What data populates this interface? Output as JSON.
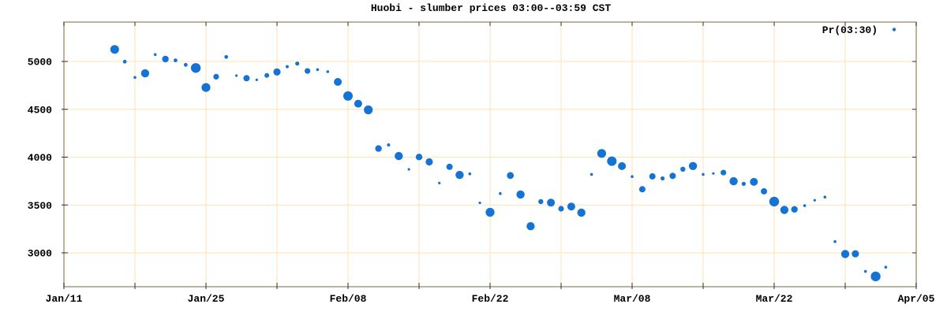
{
  "chart_data": {
    "type": "scatter",
    "title": "Huobi - slumber prices 03:00--03:59 CST",
    "legend": {
      "label": "Pr(03:30)",
      "position": "top-right"
    },
    "x_axis": {
      "ticks": [
        "Jan/11",
        "Jan/18",
        "Jan/25",
        "Feb/01",
        "Feb/08",
        "Feb/15",
        "Feb/22",
        "Mar/01",
        "Mar/08",
        "Mar/15",
        "Mar/22",
        "Mar/29",
        "Apr/05"
      ],
      "labeled_ticks": [
        "Jan/11",
        "Jan/25",
        "Feb/08",
        "Feb/22",
        "Mar/08",
        "Mar/22",
        "Apr/05"
      ],
      "range": [
        "Jan/11",
        "Apr/05"
      ]
    },
    "y_axis": {
      "ticks": [
        3000,
        3500,
        4000,
        4500,
        5000
      ],
      "range": [
        2646,
        5412
      ]
    },
    "grid": true,
    "colors": {
      "point": "#1574d3",
      "grid": "#ffe2b5",
      "border": "#a69b7d",
      "tick": "#2b2b2b",
      "text": "#000000"
    },
    "points": [
      {
        "date": "Jan/16",
        "price": 5126,
        "size": 5.5
      },
      {
        "date": "Jan/17",
        "price": 4998,
        "size": 2.4
      },
      {
        "date": "Jan/18",
        "price": 4833,
        "size": 1.8
      },
      {
        "date": "Jan/19",
        "price": 4876,
        "size": 5.2
      },
      {
        "date": "Jan/20",
        "price": 5072,
        "size": 1.8
      },
      {
        "date": "Jan/21",
        "price": 5025,
        "size": 4.2
      },
      {
        "date": "Jan/22",
        "price": 5011,
        "size": 2.4
      },
      {
        "date": "Jan/23",
        "price": 4965,
        "size": 2.4
      },
      {
        "date": "Jan/24",
        "price": 4932,
        "size": 6.2
      },
      {
        "date": "Jan/25",
        "price": 4728,
        "size": 5.6
      },
      {
        "date": "Jan/26",
        "price": 4841,
        "size": 3.6
      },
      {
        "date": "Jan/27",
        "price": 5047,
        "size": 2.4
      },
      {
        "date": "Jan/28",
        "price": 4852,
        "size": 1.6
      },
      {
        "date": "Jan/29",
        "price": 4825,
        "size": 4.0
      },
      {
        "date": "Jan/30",
        "price": 4808,
        "size": 1.6
      },
      {
        "date": "Jan/31",
        "price": 4854,
        "size": 3.0
      },
      {
        "date": "Feb/01",
        "price": 4890,
        "size": 4.6
      },
      {
        "date": "Feb/02",
        "price": 4946,
        "size": 2.0
      },
      {
        "date": "Feb/03",
        "price": 4978,
        "size": 2.6
      },
      {
        "date": "Feb/04",
        "price": 4901,
        "size": 3.6
      },
      {
        "date": "Feb/05",
        "price": 4915,
        "size": 1.8
      },
      {
        "date": "Feb/06",
        "price": 4893,
        "size": 1.8
      },
      {
        "date": "Feb/07",
        "price": 4786,
        "size": 5.0
      },
      {
        "date": "Feb/08",
        "price": 4639,
        "size": 6.0
      },
      {
        "date": "Feb/09",
        "price": 4559,
        "size": 5.0
      },
      {
        "date": "Feb/10",
        "price": 4494,
        "size": 5.6
      },
      {
        "date": "Feb/11",
        "price": 4090,
        "size": 4.2
      },
      {
        "date": "Feb/12",
        "price": 4128,
        "size": 2.0
      },
      {
        "date": "Feb/13",
        "price": 4012,
        "size": 5.2
      },
      {
        "date": "Feb/14",
        "price": 3873,
        "size": 1.6
      },
      {
        "date": "Feb/15",
        "price": 4002,
        "size": 4.2
      },
      {
        "date": "Feb/16",
        "price": 3951,
        "size": 4.6
      },
      {
        "date": "Feb/17",
        "price": 3729,
        "size": 1.6
      },
      {
        "date": "Feb/18",
        "price": 3899,
        "size": 4.0
      },
      {
        "date": "Feb/19",
        "price": 3814,
        "size": 5.2
      },
      {
        "date": "Feb/20",
        "price": 3826,
        "size": 1.8
      },
      {
        "date": "Feb/21",
        "price": 3523,
        "size": 1.6
      },
      {
        "date": "Feb/22",
        "price": 3424,
        "size": 5.6
      },
      {
        "date": "Feb/23",
        "price": 3620,
        "size": 1.8
      },
      {
        "date": "Feb/24",
        "price": 3808,
        "size": 4.4
      },
      {
        "date": "Feb/25",
        "price": 3610,
        "size": 5.2
      },
      {
        "date": "Feb/26",
        "price": 3278,
        "size": 5.2
      },
      {
        "date": "Feb/27",
        "price": 3535,
        "size": 3.2
      },
      {
        "date": "Feb/28",
        "price": 3524,
        "size": 5.0
      },
      {
        "date": "Mar/01",
        "price": 3461,
        "size": 3.6
      },
      {
        "date": "Mar/02",
        "price": 3484,
        "size": 5.0
      },
      {
        "date": "Mar/03",
        "price": 3420,
        "size": 5.2
      },
      {
        "date": "Mar/04",
        "price": 3820,
        "size": 1.8
      },
      {
        "date": "Mar/05",
        "price": 4039,
        "size": 5.6
      },
      {
        "date": "Mar/06",
        "price": 3958,
        "size": 6.0
      },
      {
        "date": "Mar/07",
        "price": 3906,
        "size": 5.0
      },
      {
        "date": "Mar/08",
        "price": 3797,
        "size": 1.8
      },
      {
        "date": "Mar/09",
        "price": 3664,
        "size": 4.0
      },
      {
        "date": "Mar/10",
        "price": 3799,
        "size": 4.0
      },
      {
        "date": "Mar/11",
        "price": 3778,
        "size": 2.6
      },
      {
        "date": "Mar/12",
        "price": 3804,
        "size": 4.0
      },
      {
        "date": "Mar/13",
        "price": 3874,
        "size": 3.2
      },
      {
        "date": "Mar/14",
        "price": 3907,
        "size": 5.2
      },
      {
        "date": "Mar/15",
        "price": 3820,
        "size": 1.8
      },
      {
        "date": "Mar/16",
        "price": 3830,
        "size": 1.6
      },
      {
        "date": "Mar/17",
        "price": 3839,
        "size": 3.6
      },
      {
        "date": "Mar/18",
        "price": 3748,
        "size": 5.2
      },
      {
        "date": "Mar/19",
        "price": 3721,
        "size": 2.6
      },
      {
        "date": "Mar/20",
        "price": 3742,
        "size": 5.0
      },
      {
        "date": "Mar/21",
        "price": 3643,
        "size": 4.0
      },
      {
        "date": "Mar/22",
        "price": 3536,
        "size": 6.2
      },
      {
        "date": "Mar/23",
        "price": 3449,
        "size": 5.2
      },
      {
        "date": "Mar/24",
        "price": 3454,
        "size": 4.2
      },
      {
        "date": "Mar/25",
        "price": 3493,
        "size": 1.8
      },
      {
        "date": "Mar/26",
        "price": 3550,
        "size": 1.6
      },
      {
        "date": "Mar/27",
        "price": 3583,
        "size": 1.8
      },
      {
        "date": "Mar/28",
        "price": 3118,
        "size": 1.8
      },
      {
        "date": "Mar/29",
        "price": 2988,
        "size": 5.2
      },
      {
        "date": "Mar/30",
        "price": 2990,
        "size": 4.6
      },
      {
        "date": "Mar/31",
        "price": 2806,
        "size": 1.8
      },
      {
        "date": "Apr/01",
        "price": 2754,
        "size": 6.2
      },
      {
        "date": "Apr/02",
        "price": 2850,
        "size": 1.8
      }
    ]
  }
}
